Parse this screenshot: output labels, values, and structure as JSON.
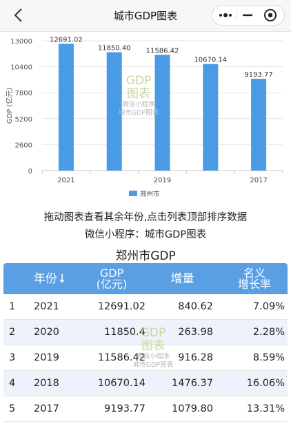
{
  "nav": {
    "title": "城市GDP图表",
    "more_icon": "more-dots-icon",
    "minimize_icon": "minimize-icon",
    "close_icon": "record-close-icon"
  },
  "watermark": {
    "line1": "GDP",
    "line2": "图表",
    "line3": "微信小程序",
    "line4": "城市GDP图表"
  },
  "chart_data": {
    "type": "bar",
    "categories": [
      "2021",
      "2020",
      "2019",
      "2018",
      "2017"
    ],
    "x_tick_labels": [
      "2021",
      "",
      "2019",
      "",
      "2017"
    ],
    "values": [
      12691.02,
      11850.4,
      11586.42,
      10670.14,
      9193.77
    ],
    "data_labels": [
      "12691.02",
      "11850.40",
      "11586.42",
      "10670.14",
      "9193.77"
    ],
    "series": [
      {
        "name": "郑州市",
        "values": [
          12691.02,
          11850.4,
          11586.42,
          10670.14,
          9193.77
        ]
      }
    ],
    "ylabel": "GDP (亿元)",
    "yticks": [
      "0",
      "2600",
      "5200",
      "7800",
      "10400",
      "13000"
    ],
    "ylim": [
      0,
      13000
    ],
    "grid": true,
    "legend_position": "bottom",
    "bar_color": "#4a9be6"
  },
  "hints": {
    "line1": "拖动图表查看其余年份,点击列表顶部排序数据",
    "line2": "微信小程序：城市GDP图表"
  },
  "table": {
    "title": "郑州市GDP",
    "headers": {
      "year": "年份↓",
      "gdp_line1": "GDP",
      "gdp_line2": "(亿元)",
      "increase": "增量",
      "rate_line1": "名义",
      "rate_line2": "增长率"
    },
    "rows": [
      {
        "index": "1",
        "year": "2021",
        "gdp": "12691.02",
        "increase": "840.62",
        "rate": "7.09%"
      },
      {
        "index": "2",
        "year": "2020",
        "gdp": "11850.4",
        "increase": "263.98",
        "rate": "2.28%"
      },
      {
        "index": "3",
        "year": "2019",
        "gdp": "11586.42",
        "increase": "916.28",
        "rate": "8.59%"
      },
      {
        "index": "4",
        "year": "2018",
        "gdp": "10670.14",
        "increase": "1476.37",
        "rate": "16.06%"
      },
      {
        "index": "5",
        "year": "2017",
        "gdp": "9193.77",
        "increase": "1079.80",
        "rate": "13.31%"
      }
    ]
  }
}
